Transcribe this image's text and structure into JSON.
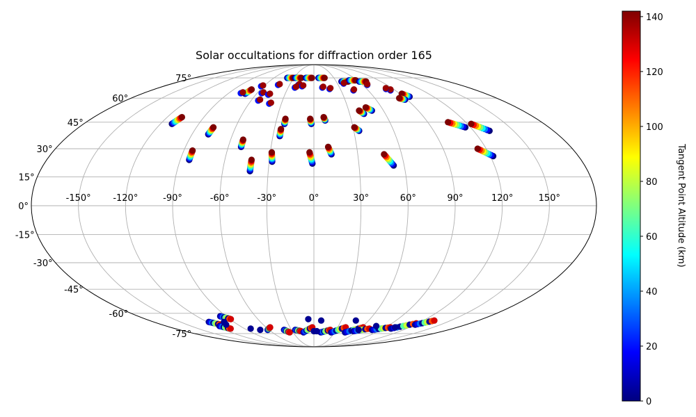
{
  "chart_data": {
    "type": "scatter",
    "projection": "mollweide",
    "title": "Solar occultations for diffraction order 165",
    "xlabel": "",
    "ylabel": "",
    "longitude_ticks": [
      "-150°",
      "-120°",
      "-90°",
      "-60°",
      "-30°",
      "0°",
      "30°",
      "60°",
      "90°",
      "120°",
      "150°"
    ],
    "latitude_ticks": [
      "75°",
      "60°",
      "45°",
      "30°",
      "15°",
      "0°",
      "-15°",
      "-30°",
      "-45°",
      "-60°",
      "-75°"
    ],
    "longitude_tick_values": [
      -150,
      -120,
      -90,
      -60,
      -30,
      0,
      30,
      60,
      90,
      120,
      150
    ],
    "latitude_tick_values": [
      75,
      60,
      45,
      30,
      15,
      0,
      -15,
      -30,
      -45,
      -60,
      -75
    ],
    "grid": true,
    "colorbar": {
      "label": "Tangent Point Altitude (km)",
      "range": [
        0,
        142
      ],
      "ticks": [
        "0",
        "20",
        "40",
        "60",
        "80",
        "100",
        "120",
        "140"
      ],
      "tick_values": [
        0,
        20,
        40,
        60,
        80,
        100,
        120,
        140
      ],
      "colormap": "jet"
    },
    "color_stops": [
      "#00007f",
      "#0000ff",
      "#007fff",
      "#00ffff",
      "#7fff7f",
      "#ffff00",
      "#ff7f00",
      "#ff0000",
      "#7f0000"
    ],
    "occultation_tracks": [
      {
        "lon_top": -108,
        "lat_top": 48,
        "lon_bottom": -111,
        "lat_bottom": 44
      },
      {
        "lon_top": -77,
        "lat_top": 42,
        "lon_bottom": -78,
        "lat_bottom": 38
      },
      {
        "lon_top": -84,
        "lat_top": 29,
        "lon_bottom": -84,
        "lat_bottom": 24
      },
      {
        "lon_top": -51,
        "lat_top": 35,
        "lon_bottom": -51,
        "lat_bottom": 31
      },
      {
        "lon_top": -42,
        "lat_top": 24,
        "lon_bottom": -42,
        "lat_bottom": 18
      },
      {
        "lon_top": -29,
        "lat_top": 28,
        "lon_bottom": -28,
        "lat_bottom": 23
      },
      {
        "lon_top": -25,
        "lat_top": 41,
        "lon_bottom": -25,
        "lat_bottom": 37
      },
      {
        "lon_top": -23,
        "lat_top": 47,
        "lon_bottom": -23,
        "lat_bottom": 44
      },
      {
        "lon_top": -3,
        "lat_top": 47,
        "lon_bottom": -2,
        "lat_bottom": 44
      },
      {
        "lon_top": -3,
        "lat_top": 28,
        "lon_bottom": -1,
        "lat_bottom": 22
      },
      {
        "lon_top": 8,
        "lat_top": 48,
        "lon_bottom": 9,
        "lat_bottom": 46
      },
      {
        "lon_top": 10,
        "lat_top": 31,
        "lon_bottom": 12,
        "lat_bottom": 27
      },
      {
        "lon_top": 31,
        "lat_top": 42,
        "lon_bottom": 34,
        "lat_bottom": 40
      },
      {
        "lon_top": 39,
        "lat_top": 52,
        "lon_bottom": 42,
        "lat_bottom": 50
      },
      {
        "lon_top": 46,
        "lat_top": 54,
        "lon_bottom": 50,
        "lat_bottom": 52
      },
      {
        "lon_top": 48,
        "lat_top": 27,
        "lon_bottom": 53,
        "lat_bottom": 21
      },
      {
        "lon_top": 106,
        "lat_top": 45,
        "lon_bottom": 116,
        "lat_bottom": 42
      },
      {
        "lon_top": 123,
        "lat_top": 44,
        "lon_bottom": 132,
        "lat_bottom": 40
      },
      {
        "lon_top": 114,
        "lat_top": 30,
        "lon_bottom": 122,
        "lat_bottom": 26
      },
      {
        "lon_top": -70,
        "lat_top": 66,
        "lon_bottom": -72,
        "lat_bottom": 63
      },
      {
        "lon_top": 92,
        "lat_top": 63,
        "lon_bottom": 96,
        "lat_bottom": 61
      },
      {
        "lon_top": 84,
        "lat_top": 60,
        "lon_bottom": 88,
        "lat_bottom": 59
      }
    ],
    "red_markers": [
      {
        "lon": -62,
        "lat": 69
      },
      {
        "lon": -43,
        "lat": 70
      },
      {
        "lon": -18,
        "lat": 70
      },
      {
        "lon": -13,
        "lat": 69
      },
      {
        "lon": -21,
        "lat": 68
      },
      {
        "lon": 11,
        "lat": 68
      },
      {
        "lon": 19,
        "lat": 67
      },
      {
        "lon": -54,
        "lat": 64
      },
      {
        "lon": -46,
        "lat": 63
      },
      {
        "lon": -52,
        "lat": 59
      },
      {
        "lon": 39,
        "lat": 71
      },
      {
        "lon": 45,
        "lat": 66
      },
      {
        "lon": 67,
        "lat": 70
      },
      {
        "lon": 86,
        "lat": 66
      },
      {
        "lon": 83,
        "lat": 67
      },
      {
        "lon": -76,
        "lat": 64
      },
      {
        "lon": -40,
        "lat": 57
      }
    ],
    "top_edge_tracks": [
      {
        "lon_a": -31,
        "lon_b": -40,
        "lat": 75
      },
      {
        "lon_a": -19,
        "lon_b": -28,
        "lat": 75
      },
      {
        "lon_a": -3,
        "lon_b": -12,
        "lat": 75
      },
      {
        "lon_a": 16,
        "lon_b": 7,
        "lat": 75
      },
      {
        "lon_a": 46,
        "lon_b": 37,
        "lat": 72
      },
      {
        "lon_a": 58,
        "lon_b": 49,
        "lat": 73
      },
      {
        "lon_a": 70,
        "lon_b": 61,
        "lat": 72
      }
    ],
    "south_tracks": [
      {
        "lon_a": -118,
        "lat_a": -66,
        "lon_b": -110,
        "lat_b": -68
      },
      {
        "lon_a": -96,
        "lat_a": -62,
        "lon_b": -89,
        "lat_b": -64
      },
      {
        "lon_a": -115,
        "lat_a": -69,
        "lon_b": -108,
        "lat_b": -71
      },
      {
        "lon_a": -62,
        "lat_a": -72,
        "lon_b": -55,
        "lat_b": -70
      },
      {
        "lon_a": -40,
        "lat_a": -72,
        "lon_b": -35,
        "lat_b": -74
      },
      {
        "lon_a": -25,
        "lat_a": -72,
        "lon_b": -18,
        "lat_b": -73
      },
      {
        "lon_a": -15,
        "lat_a": -74,
        "lon_b": -2,
        "lat_b": -70
      },
      {
        "lon_a": 10,
        "lat_a": -74,
        "lon_b": 22,
        "lat_b": -72
      },
      {
        "lon_a": 25,
        "lat_a": -74,
        "lon_b": 40,
        "lat_b": -70
      },
      {
        "lon_a": 45,
        "lat_a": -74,
        "lon_b": 62,
        "lat_b": -70
      },
      {
        "lon_a": 55,
        "lat_a": -73,
        "lon_b": 72,
        "lat_b": -71
      },
      {
        "lon_a": 78,
        "lat_a": -72,
        "lon_b": 96,
        "lat_b": -70
      },
      {
        "lon_a": 100,
        "lat_a": -71,
        "lon_b": 118,
        "lat_b": -67
      },
      {
        "lon_a": 120,
        "lat_a": -68,
        "lon_b": 132,
        "lat_b": -65
      }
    ],
    "south_points": [
      {
        "lon": -101,
        "lat": -66
      },
      {
        "lon": -104,
        "lat": -68
      },
      {
        "lon": -82,
        "lat": -71
      },
      {
        "lon": -72,
        "lat": -72
      },
      {
        "lon": -6,
        "lat": -64
      },
      {
        "lon": 8,
        "lat": -65
      },
      {
        "lon": 46,
        "lat": -65
      },
      {
        "lon": 60,
        "lat": -72
      },
      {
        "lon": 76,
        "lat": -69
      },
      {
        "lon": 102,
        "lat": -70
      },
      {
        "lon": 0,
        "lat": -73
      },
      {
        "lon": 4,
        "lat": -73
      }
    ]
  }
}
